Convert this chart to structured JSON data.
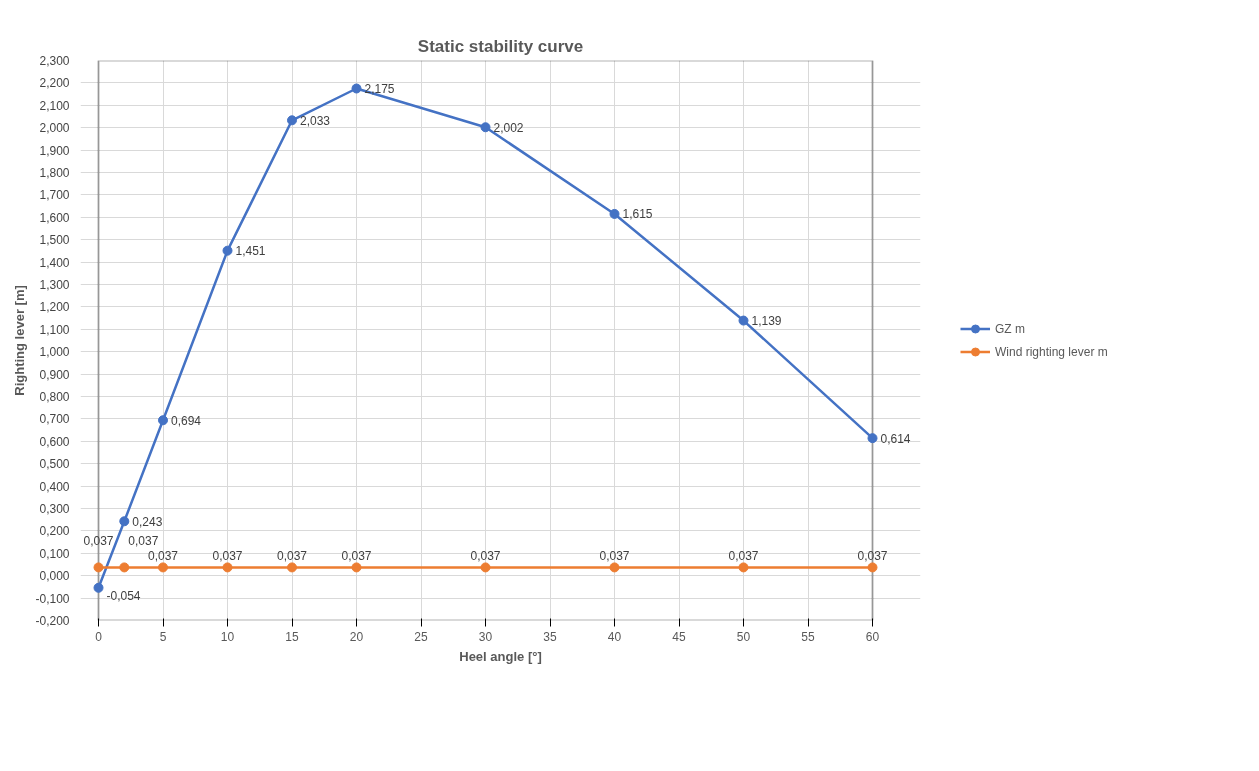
{
  "chart_data": {
    "type": "line",
    "title": "Static stability curve",
    "xlabel": "Heel angle [°]",
    "ylabel": "Righting lever [m]",
    "x": [
      0,
      2,
      5,
      10,
      15,
      20,
      30,
      40,
      50,
      60
    ],
    "series": [
      {
        "name": "GZ m",
        "color": "#4472c4",
        "values": [
          -0.054,
          0.243,
          0.694,
          1.451,
          2.033,
          2.175,
          2.002,
          1.615,
          1.139,
          0.614
        ],
        "value_labels": [
          "-0,054",
          "0,243",
          "0,694",
          "1,451",
          "2,033",
          "2,175",
          "2,002",
          "1,615",
          "1,139",
          "0,614"
        ]
      },
      {
        "name": "Wind righting lever m",
        "color": "#ed7d31",
        "values": [
          0.037,
          0.037,
          0.037,
          0.037,
          0.037,
          0.037,
          0.037,
          0.037,
          0.037,
          0.037
        ],
        "value_labels": [
          "0,037",
          "0,037",
          "0,037",
          "0,037",
          "0,037",
          "0,037",
          "0,037",
          "0,037",
          "0,037",
          "0,037"
        ]
      }
    ],
    "xlim": [
      0,
      60
    ],
    "xticks": [
      0,
      5,
      10,
      15,
      20,
      25,
      30,
      35,
      40,
      45,
      50,
      55,
      60
    ],
    "ylim": [
      -0.2,
      2.3
    ],
    "yticks": [
      {
        "value": -0.2,
        "label": "-0,200"
      },
      {
        "value": -0.1,
        "label": "-0,100"
      },
      {
        "value": 0,
        "label": "0,000"
      },
      {
        "value": 0.1,
        "label": "0,100"
      },
      {
        "value": 0.2,
        "label": "0,200"
      },
      {
        "value": 0.3,
        "label": "0,300"
      },
      {
        "value": 0.4,
        "label": "0,400"
      },
      {
        "value": 0.5,
        "label": "0,500"
      },
      {
        "value": 0.6,
        "label": "0,600"
      },
      {
        "value": 0.7,
        "label": "0,700"
      },
      {
        "value": 0.8,
        "label": "0,800"
      },
      {
        "value": 0.9,
        "label": "0,900"
      },
      {
        "value": 1.0,
        "label": "1,000"
      },
      {
        "value": 1.1,
        "label": "1,100"
      },
      {
        "value": 1.2,
        "label": "1,200"
      },
      {
        "value": 1.3,
        "label": "1,300"
      },
      {
        "value": 1.4,
        "label": "1,400"
      },
      {
        "value": 1.5,
        "label": "1,500"
      },
      {
        "value": 1.6,
        "label": "1,600"
      },
      {
        "value": 1.7,
        "label": "1,700"
      },
      {
        "value": 1.8,
        "label": "1,800"
      },
      {
        "value": 1.9,
        "label": "1,900"
      },
      {
        "value": 2.0,
        "label": "2,000"
      },
      {
        "value": 2.1,
        "label": "2,100"
      },
      {
        "value": 2.2,
        "label": "2,200"
      },
      {
        "value": 2.3,
        "label": "2,300"
      }
    ],
    "grid": true,
    "legend": "right",
    "marker": "circle",
    "line_style": "solid"
  }
}
